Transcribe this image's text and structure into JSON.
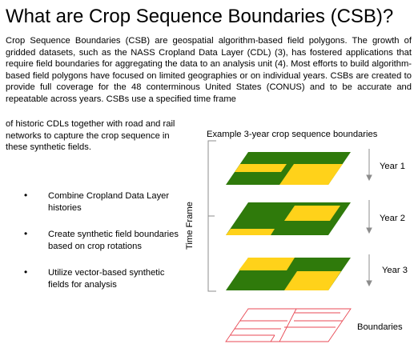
{
  "title": "What are Crop Sequence Boundaries (CSB)?",
  "paragraph": "Crop Sequence Boundaries (CSB) are geospatial algorithm-based field polygons. The growth of gridded datasets, such as the NASS Cropland Data Layer (CDL) (3), has fostered applications that require field boundaries for aggregating the data to an analysis unit (4). Most efforts to build algorithm-based field polygons have focused on limited geographies or on individual years. CSBs are created to provide full coverage for the 48 conterminous United States (CONUS) and to be accurate and repeatable across years. CSBs use a specified time frame",
  "paragraph_cont": "of historic CDLs together with road and rail networks to capture the crop sequence in these synthetic fields.",
  "bullets": [
    "Combine Cropland Data Layer histories",
    "Create synthetic field boundaries based on crop rotations",
    "Utilize vector-based synthetic fields for analysis"
  ],
  "diagram": {
    "caption": "Example 3-year crop sequence boundaries",
    "time_frame_label": "Time Frame",
    "year_labels": [
      "Year 1",
      "Year 2",
      "Year 3"
    ],
    "boundaries_label": "Boundaries",
    "colors": {
      "green": "#2f7a0b",
      "yellow": "#ffd21a",
      "boundary": "#e84a55",
      "axis": "#8c8c8c"
    }
  }
}
